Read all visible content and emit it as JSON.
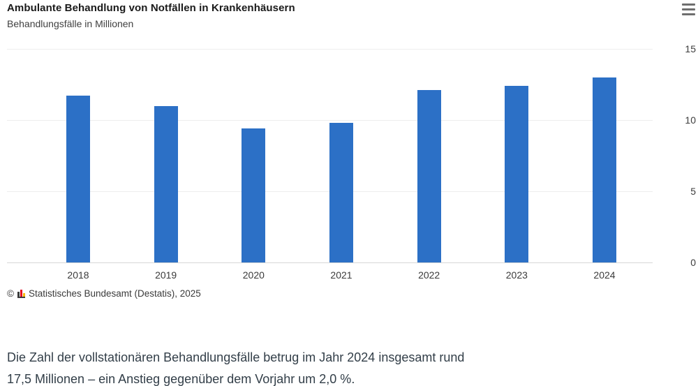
{
  "header": {
    "title": "Ambulante Behandlung von Notfällen in Krankenhäusern",
    "subtitle": "Behandlungsfälle in Millionen"
  },
  "menu": {
    "icon": "hamburger"
  },
  "chart_data": {
    "type": "bar",
    "title": "Ambulante Behandlung von Notfällen in Krankenhäusern",
    "ylabel": "Behandlungsfälle in Millionen",
    "categories": [
      "2018",
      "2019",
      "2020",
      "2021",
      "2022",
      "2023",
      "2024"
    ],
    "values": [
      11.7,
      11.0,
      9.4,
      9.8,
      12.1,
      12.4,
      13.0
    ],
    "ylim": [
      0,
      15
    ],
    "yticks": [
      0,
      5,
      10,
      15
    ],
    "ytick_labels": [
      "0",
      "5",
      "10",
      "15"
    ],
    "y_axis_position": "right",
    "grid": true,
    "legend": false,
    "bar_color": "#2c70c6"
  },
  "source": {
    "copyright": "©",
    "label": "Statistisches Bundesamt (Destatis), 2025"
  },
  "footer_text": {
    "line1": "Die Zahl der vollstationären Behandlungsfälle betrug im Jahr 2024 insgesamt rund",
    "line2": "17,5 Millionen – ein Anstieg gegenüber dem Vorjahr um 2,0 %."
  }
}
